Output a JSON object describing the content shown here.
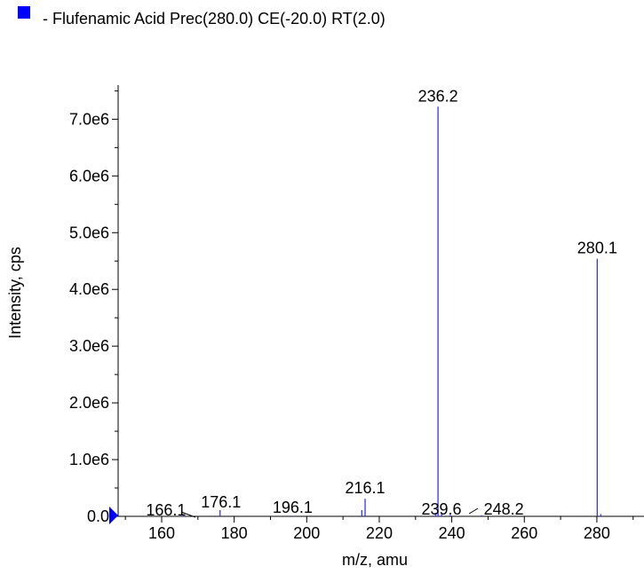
{
  "legend": {
    "text": "- Flufenamic Acid  Prec(280.0) CE(-20.0) RT(2.0)",
    "marker_color": "#0000ff"
  },
  "chart_data": {
    "type": "bar",
    "title": "",
    "xlabel": "m/z, amu",
    "ylabel": "Intensity, cps",
    "xlim": [
      148,
      293
    ],
    "ylim": [
      0,
      7600000
    ],
    "x_ticks": [
      160,
      180,
      200,
      220,
      240,
      260,
      280
    ],
    "x_tick_labels": [
      "160",
      "180",
      "200",
      "220",
      "240",
      "260",
      "280"
    ],
    "y_ticks": [
      0,
      1000000,
      2000000,
      3000000,
      4000000,
      5000000,
      6000000,
      7000000
    ],
    "y_tick_labels": [
      "0.0",
      "1.0e6",
      "2.0e6",
      "3.0e6",
      "4.0e6",
      "5.0e6",
      "6.0e6",
      "7.0e6"
    ],
    "grid": false,
    "series_color": "#3333ff",
    "peaks": [
      {
        "mz": 166.1,
        "intensity": 15000
      },
      {
        "mz": 176.1,
        "intensity": 110000
      },
      {
        "mz": 196.1,
        "intensity": 10000
      },
      {
        "mz": 215.2,
        "intensity": 110000
      },
      {
        "mz": 216.1,
        "intensity": 310000
      },
      {
        "mz": 235.5,
        "intensity": 60000
      },
      {
        "mz": 236.2,
        "intensity": 7220000
      },
      {
        "mz": 237.2,
        "intensity": 50000
      },
      {
        "mz": 239.6,
        "intensity": 25000
      },
      {
        "mz": 248.2,
        "intensity": 20000
      },
      {
        "mz": 280.1,
        "intensity": 4540000
      },
      {
        "mz": 281.1,
        "intensity": 40000
      }
    ],
    "peak_labels": [
      {
        "mz": 166.1,
        "text": "166.1"
      },
      {
        "mz": 176.1,
        "text": "176.1"
      },
      {
        "mz": 196.1,
        "text": "196.1"
      },
      {
        "mz": 216.1,
        "text": "216.1"
      },
      {
        "mz": 236.2,
        "text": "236.2"
      },
      {
        "mz": 239.6,
        "text": "239.6"
      },
      {
        "mz": 248.2,
        "text": "248.2"
      },
      {
        "mz": 280.1,
        "text": "280.1"
      }
    ]
  }
}
